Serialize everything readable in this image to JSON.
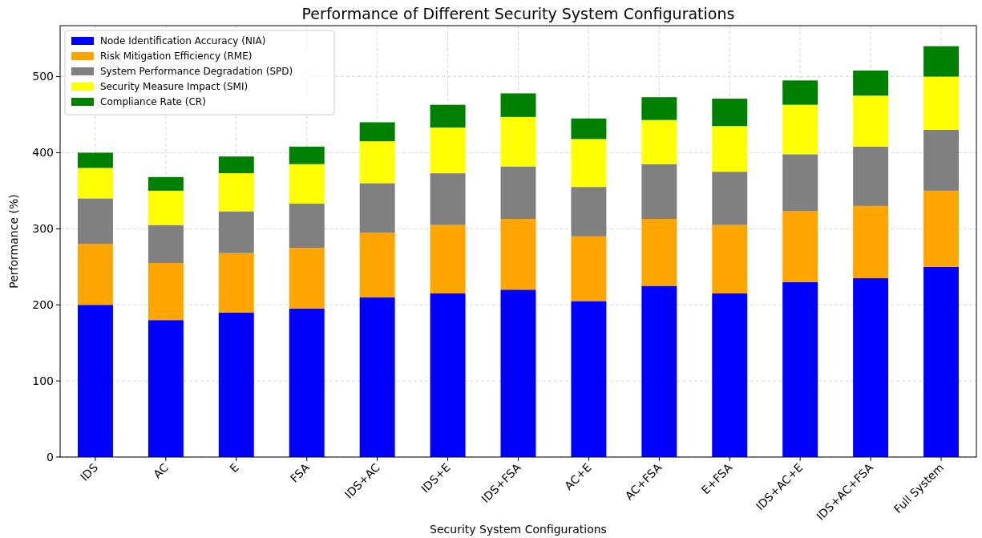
{
  "chart_data": {
    "type": "bar",
    "stacked": true,
    "title": "Performance of Different Security System Configurations",
    "xlabel": "Security System Configurations",
    "ylabel": "Performance (%)",
    "categories": [
      "IDS",
      "AC",
      "E",
      "FSA",
      "IDS+AC",
      "IDS+E",
      "IDS+FSA",
      "AC+E",
      "AC+FSA",
      "E+FSA",
      "IDS+AC+E",
      "IDS+AC+FSA",
      "Full System"
    ],
    "series": [
      {
        "name": "Node Identification Accuracy (NIA)",
        "color": "#0000ff",
        "values": [
          200,
          180,
          190,
          195,
          210,
          215,
          220,
          205,
          225,
          215,
          230,
          235,
          250
        ]
      },
      {
        "name": "Risk Mitigation Efficiency (RME)",
        "color": "#ffa500",
        "values": [
          80,
          75,
          78,
          80,
          85,
          90,
          93,
          85,
          88,
          90,
          93,
          95,
          100
        ]
      },
      {
        "name": "System Performance Degradation (SPD)",
        "color": "#808080",
        "values": [
          60,
          50,
          55,
          58,
          65,
          68,
          69,
          65,
          72,
          70,
          75,
          78,
          80
        ]
      },
      {
        "name": "Security Measure Impact (SMI)",
        "color": "#ffff00",
        "values": [
          40,
          45,
          50,
          52,
          55,
          60,
          65,
          63,
          58,
          60,
          65,
          67,
          70
        ]
      },
      {
        "name": "Compliance Rate (CR)",
        "color": "#008000",
        "values": [
          20,
          18,
          22,
          23,
          25,
          30,
          31,
          27,
          30,
          36,
          32,
          33,
          40
        ]
      }
    ],
    "ylim": [
      0,
      567
    ],
    "yticks": [
      0,
      100,
      200,
      300,
      400,
      500
    ],
    "grid": true,
    "legend": "top left"
  }
}
